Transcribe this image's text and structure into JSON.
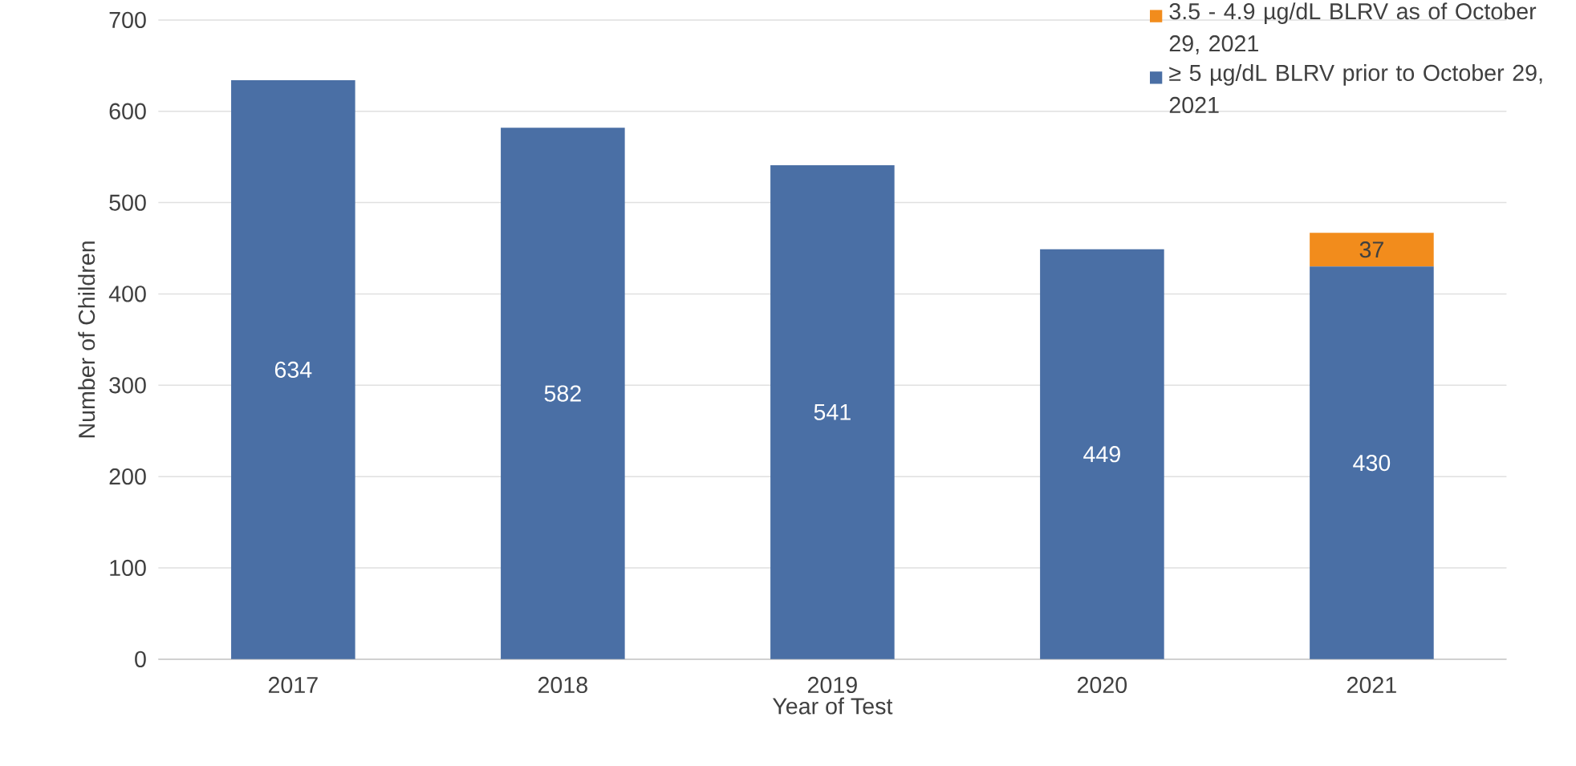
{
  "chart_data": {
    "type": "bar",
    "stacked": true,
    "xlabel": "Year of Test",
    "ylabel": "Number of Children",
    "categories": [
      "2017",
      "2018",
      "2019",
      "2020",
      "2021"
    ],
    "series": [
      {
        "name": "≥ 5 µg/dL BLRV prior to October 29, 2021",
        "color": "#4a6fa5",
        "values": [
          634,
          582,
          541,
          449,
          430
        ]
      },
      {
        "name": "3.5 - 4.9 µg/dL BLRV as of October 29, 2021",
        "color": "#f28c1c",
        "values": [
          null,
          null,
          null,
          null,
          37
        ]
      }
    ],
    "ylim": [
      0,
      700
    ],
    "yticks": [
      0,
      100,
      200,
      300,
      400,
      500,
      600,
      700
    ],
    "grid": "y",
    "legend": "top right",
    "data_labels": true
  }
}
